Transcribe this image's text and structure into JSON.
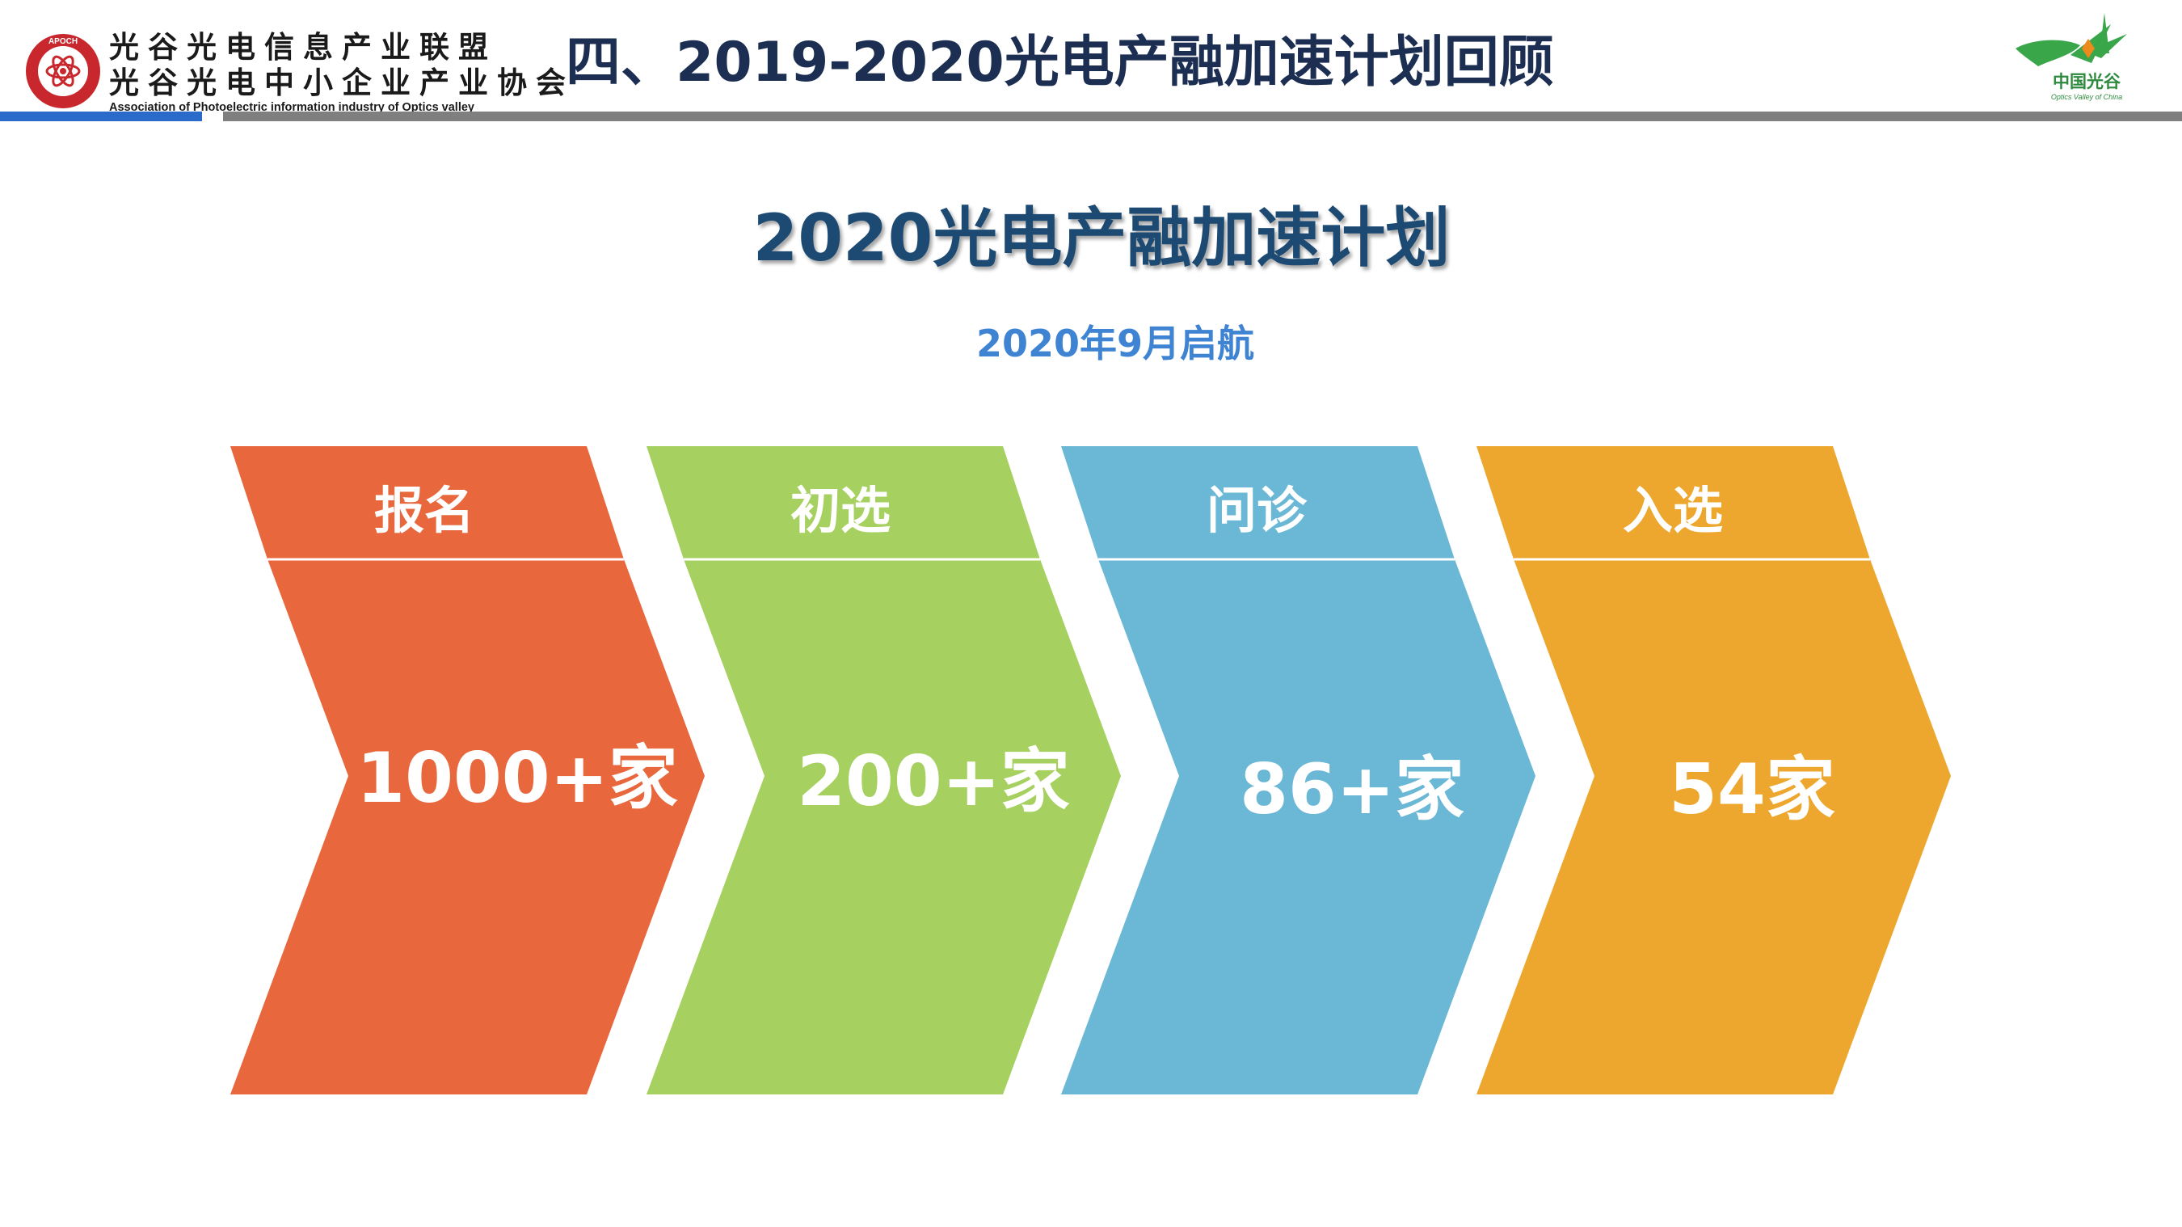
{
  "header": {
    "org_name_line1": "光谷光电信息产业联盟",
    "org_name_line2": "光谷光电中小企业产业协会",
    "org_name_english": "Association of Photoelectric information industry of Optics valley",
    "org_logo_text": "APOCH",
    "page_title": "四、2019-2020光电产融加速计划回顾",
    "brand_logo_cn": "中国光谷",
    "brand_logo_en": "Optics Valley of China"
  },
  "main": {
    "title": "2020光电产融加速计划",
    "subtitle": "2020年9月启航"
  },
  "stages": [
    {
      "label": "报名",
      "value": "1000+家",
      "color": "#e9673c"
    },
    {
      "label": "初选",
      "value": "200+家",
      "color": "#a6d05f"
    },
    {
      "label": "问诊",
      "value": "86+家",
      "color": "#6ab7d6"
    },
    {
      "label": "入选",
      "value": "54家",
      "color": "#eda72e"
    }
  ],
  "colors": {
    "title_dark_blue": "#1c2f52",
    "main_title_blue": "#1c4a73",
    "subtitle_blue": "#3f84d3",
    "accent_bar_blue": "#2a6ac9",
    "accent_bar_gray": "#7f7f7f",
    "brand_green": "#3aa64a",
    "brand_orange": "#ec8a1e"
  }
}
